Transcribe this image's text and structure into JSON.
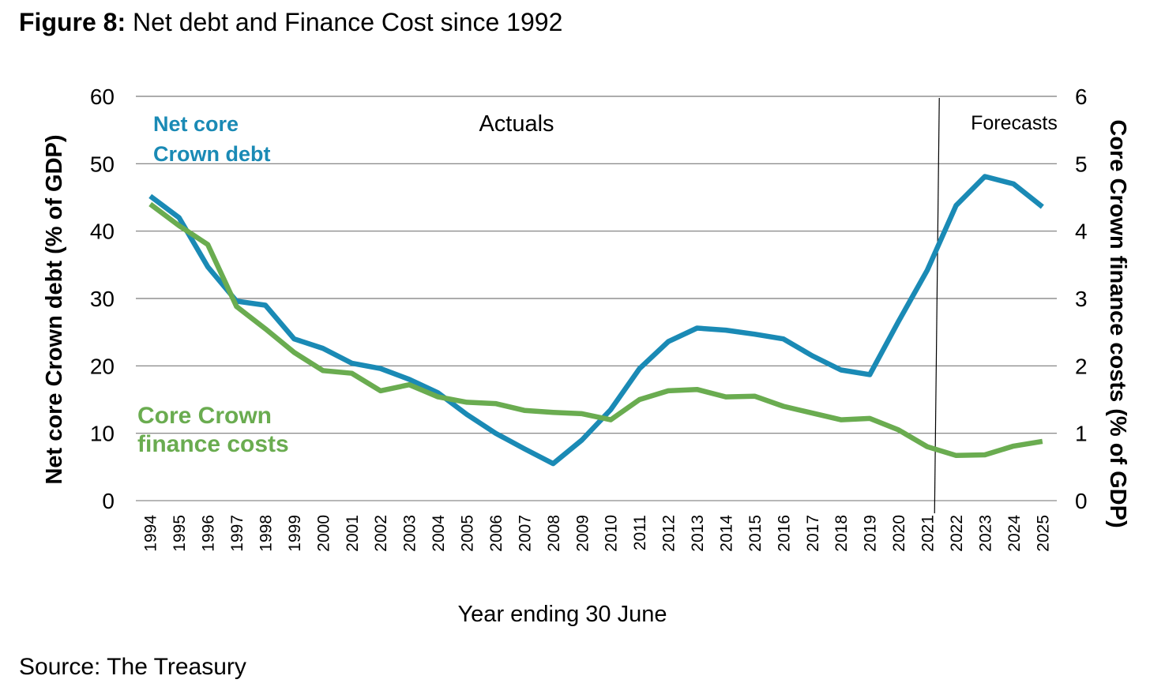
{
  "figure": {
    "label": "Figure 8:",
    "title": "Net debt and Finance Cost since 1992",
    "source": "Source: The Treasury"
  },
  "chart_data": {
    "type": "line",
    "title": "Net debt and Finance Cost since 1992",
    "xlabel": "Year ending 30 June",
    "ylabel": "Net core Crown debt (% of GDP)",
    "ylabel_right": "Core Crown finance costs (% of GDP)",
    "ylim": [
      0,
      60
    ],
    "ylim_right": [
      0,
      6
    ],
    "yticks": [
      0,
      10,
      20,
      30,
      40,
      50,
      60
    ],
    "yticks_right": [
      0,
      1,
      2,
      3,
      4,
      5,
      6
    ],
    "grid": true,
    "x": [
      "1994",
      "1995",
      "1996",
      "1997",
      "1998",
      "1999",
      "2000",
      "2001",
      "2002",
      "2003",
      "2004",
      "2005",
      "2006",
      "2007",
      "2008",
      "2009",
      "2010",
      "2011",
      "2012",
      "2013",
      "2014",
      "2015",
      "2016",
      "2017",
      "2018",
      "2019",
      "2020",
      "2021",
      "2022",
      "2023",
      "2024",
      "2025"
    ],
    "forecast_divider_after": "2021",
    "annotations": {
      "actuals": "Actuals",
      "forecasts": "Forecasts"
    },
    "series": [
      {
        "name": "Net core Crown debt",
        "label_lines": [
          "Net core",
          "Crown debt"
        ],
        "axis": "left",
        "color": "#1a8ab5",
        "values": [
          45.2,
          42.0,
          34.7,
          29.6,
          29.0,
          24.0,
          22.6,
          20.4,
          19.6,
          18.0,
          16.0,
          12.8,
          10.0,
          7.7,
          5.5,
          9.0,
          13.5,
          19.6,
          23.6,
          25.6,
          25.3,
          24.7,
          24.0,
          21.5,
          19.4,
          18.7,
          26.6,
          34.2,
          43.8,
          48.1,
          47.0,
          43.6
        ]
      },
      {
        "name": "Core Crown finance costs",
        "label_lines": [
          "Core Crown",
          "finance costs"
        ],
        "axis": "right",
        "color": "#6aac50",
        "values": [
          4.4,
          4.08,
          3.8,
          2.88,
          2.55,
          2.2,
          1.93,
          1.89,
          1.63,
          1.72,
          1.54,
          1.46,
          1.44,
          1.34,
          1.31,
          1.29,
          1.2,
          1.5,
          1.63,
          1.65,
          1.54,
          1.55,
          1.4,
          1.3,
          1.2,
          1.22,
          1.05,
          0.8,
          0.67,
          0.68,
          0.81,
          0.88
        ]
      }
    ]
  }
}
